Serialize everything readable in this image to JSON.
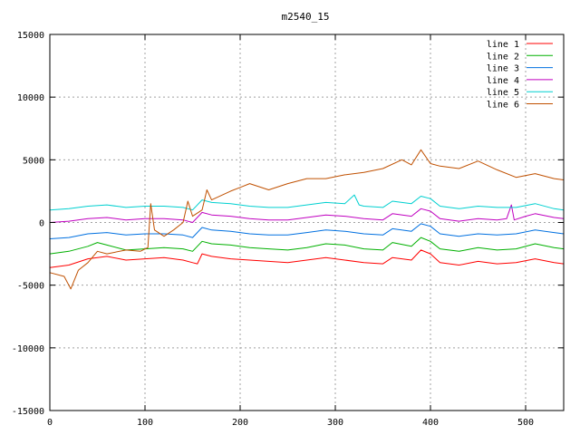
{
  "chart_data": {
    "type": "line",
    "title": "m2540_15",
    "xlabel": "",
    "ylabel": "",
    "xlim": [
      0,
      540
    ],
    "ylim": [
      -15000,
      15000
    ],
    "x_ticks": [
      0,
      100,
      200,
      300,
      400,
      500
    ],
    "y_ticks": [
      -15000,
      -10000,
      -5000,
      0,
      5000,
      10000,
      15000
    ],
    "x_tick_labels": [
      "0",
      "100",
      "200",
      "300",
      "400",
      "500"
    ],
    "y_tick_labels": [
      "-15000",
      "-10000",
      "-5000",
      "0",
      "5000",
      "10000",
      "15000"
    ],
    "grid": true,
    "legend_position": "top-right",
    "series": [
      {
        "name": "line 1",
        "color": "#ff0000",
        "points": [
          [
            0,
            -3600
          ],
          [
            20,
            -3400
          ],
          [
            40,
            -2900
          ],
          [
            60,
            -2700
          ],
          [
            80,
            -3000
          ],
          [
            100,
            -2900
          ],
          [
            120,
            -2800
          ],
          [
            140,
            -3000
          ],
          [
            150,
            -3200
          ],
          [
            155,
            -3300
          ],
          [
            160,
            -2500
          ],
          [
            170,
            -2700
          ],
          [
            190,
            -2900
          ],
          [
            210,
            -3000
          ],
          [
            230,
            -3100
          ],
          [
            250,
            -3200
          ],
          [
            270,
            -3000
          ],
          [
            290,
            -2800
          ],
          [
            310,
            -3000
          ],
          [
            330,
            -3200
          ],
          [
            350,
            -3300
          ],
          [
            360,
            -2800
          ],
          [
            380,
            -3000
          ],
          [
            390,
            -2200
          ],
          [
            400,
            -2500
          ],
          [
            410,
            -3200
          ],
          [
            430,
            -3400
          ],
          [
            450,
            -3100
          ],
          [
            470,
            -3300
          ],
          [
            490,
            -3200
          ],
          [
            510,
            -2900
          ],
          [
            530,
            -3200
          ],
          [
            540,
            -3300
          ]
        ]
      },
      {
        "name": "line 2",
        "color": "#00b000",
        "points": [
          [
            0,
            -2500
          ],
          [
            20,
            -2300
          ],
          [
            40,
            -1900
          ],
          [
            50,
            -1600
          ],
          [
            60,
            -1800
          ],
          [
            80,
            -2200
          ],
          [
            100,
            -2100
          ],
          [
            120,
            -2000
          ],
          [
            140,
            -2100
          ],
          [
            150,
            -2300
          ],
          [
            160,
            -1500
          ],
          [
            170,
            -1700
          ],
          [
            190,
            -1800
          ],
          [
            210,
            -2000
          ],
          [
            230,
            -2100
          ],
          [
            250,
            -2200
          ],
          [
            270,
            -2000
          ],
          [
            290,
            -1700
          ],
          [
            310,
            -1800
          ],
          [
            330,
            -2100
          ],
          [
            350,
            -2200
          ],
          [
            360,
            -1600
          ],
          [
            380,
            -1900
          ],
          [
            390,
            -1200
          ],
          [
            400,
            -1500
          ],
          [
            410,
            -2100
          ],
          [
            430,
            -2300
          ],
          [
            450,
            -2000
          ],
          [
            470,
            -2200
          ],
          [
            490,
            -2100
          ],
          [
            510,
            -1700
          ],
          [
            530,
            -2000
          ],
          [
            540,
            -2100
          ]
        ]
      },
      {
        "name": "line 3",
        "color": "#0070e0",
        "points": [
          [
            0,
            -1300
          ],
          [
            20,
            -1200
          ],
          [
            40,
            -900
          ],
          [
            60,
            -800
          ],
          [
            80,
            -1000
          ],
          [
            100,
            -900
          ],
          [
            120,
            -900
          ],
          [
            140,
            -1000
          ],
          [
            150,
            -1200
          ],
          [
            160,
            -400
          ],
          [
            170,
            -600
          ],
          [
            190,
            -700
          ],
          [
            210,
            -900
          ],
          [
            230,
            -1000
          ],
          [
            250,
            -1000
          ],
          [
            270,
            -800
          ],
          [
            290,
            -600
          ],
          [
            310,
            -700
          ],
          [
            330,
            -900
          ],
          [
            350,
            -1000
          ],
          [
            360,
            -500
          ],
          [
            380,
            -700
          ],
          [
            390,
            -100
          ],
          [
            400,
            -300
          ],
          [
            410,
            -900
          ],
          [
            430,
            -1100
          ],
          [
            450,
            -900
          ],
          [
            470,
            -1000
          ],
          [
            490,
            -900
          ],
          [
            510,
            -600
          ],
          [
            530,
            -800
          ],
          [
            540,
            -900
          ]
        ]
      },
      {
        "name": "line 4",
        "color": "#c000c0",
        "points": [
          [
            0,
            0
          ],
          [
            20,
            100
          ],
          [
            40,
            300
          ],
          [
            60,
            400
          ],
          [
            80,
            200
          ],
          [
            100,
            300
          ],
          [
            120,
            300
          ],
          [
            140,
            200
          ],
          [
            150,
            0
          ],
          [
            160,
            800
          ],
          [
            170,
            600
          ],
          [
            190,
            500
          ],
          [
            210,
            300
          ],
          [
            230,
            200
          ],
          [
            250,
            200
          ],
          [
            270,
            400
          ],
          [
            290,
            600
          ],
          [
            310,
            500
          ],
          [
            330,
            300
          ],
          [
            350,
            200
          ],
          [
            360,
            700
          ],
          [
            380,
            500
          ],
          [
            390,
            1100
          ],
          [
            400,
            900
          ],
          [
            410,
            300
          ],
          [
            430,
            100
          ],
          [
            450,
            300
          ],
          [
            470,
            200
          ],
          [
            480,
            300
          ],
          [
            485,
            1400
          ],
          [
            488,
            200
          ],
          [
            500,
            500
          ],
          [
            510,
            700
          ],
          [
            530,
            400
          ],
          [
            540,
            300
          ]
        ]
      },
      {
        "name": "line 5",
        "color": "#00d0d0",
        "points": [
          [
            0,
            1000
          ],
          [
            20,
            1100
          ],
          [
            40,
            1300
          ],
          [
            60,
            1400
          ],
          [
            80,
            1200
          ],
          [
            100,
            1300
          ],
          [
            120,
            1300
          ],
          [
            140,
            1200
          ],
          [
            150,
            1000
          ],
          [
            160,
            1800
          ],
          [
            170,
            1600
          ],
          [
            190,
            1500
          ],
          [
            210,
            1300
          ],
          [
            230,
            1200
          ],
          [
            250,
            1200
          ],
          [
            270,
            1400
          ],
          [
            290,
            1600
          ],
          [
            310,
            1500
          ],
          [
            320,
            2200
          ],
          [
            325,
            1400
          ],
          [
            330,
            1300
          ],
          [
            350,
            1200
          ],
          [
            360,
            1700
          ],
          [
            380,
            1500
          ],
          [
            390,
            2100
          ],
          [
            400,
            1900
          ],
          [
            410,
            1300
          ],
          [
            430,
            1100
          ],
          [
            450,
            1300
          ],
          [
            470,
            1200
          ],
          [
            490,
            1200
          ],
          [
            510,
            1500
          ],
          [
            530,
            1100
          ],
          [
            540,
            1000
          ]
        ]
      },
      {
        "name": "line 6",
        "color": "#c05000",
        "points": [
          [
            0,
            -4000
          ],
          [
            15,
            -4300
          ],
          [
            22,
            -5300
          ],
          [
            30,
            -3800
          ],
          [
            40,
            -3200
          ],
          [
            50,
            -2300
          ],
          [
            60,
            -2500
          ],
          [
            80,
            -2200
          ],
          [
            95,
            -2300
          ],
          [
            103,
            -2000
          ],
          [
            106,
            1500
          ],
          [
            110,
            -600
          ],
          [
            120,
            -1100
          ],
          [
            130,
            -600
          ],
          [
            140,
            0
          ],
          [
            145,
            1700
          ],
          [
            150,
            500
          ],
          [
            160,
            1000
          ],
          [
            165,
            2600
          ],
          [
            170,
            1800
          ],
          [
            190,
            2500
          ],
          [
            200,
            2800
          ],
          [
            210,
            3100
          ],
          [
            230,
            2600
          ],
          [
            250,
            3100
          ],
          [
            270,
            3500
          ],
          [
            290,
            3500
          ],
          [
            310,
            3800
          ],
          [
            330,
            4000
          ],
          [
            350,
            4300
          ],
          [
            370,
            5000
          ],
          [
            380,
            4600
          ],
          [
            390,
            5800
          ],
          [
            400,
            4700
          ],
          [
            410,
            4500
          ],
          [
            430,
            4300
          ],
          [
            450,
            4900
          ],
          [
            470,
            4200
          ],
          [
            490,
            3600
          ],
          [
            510,
            3900
          ],
          [
            530,
            3500
          ],
          [
            540,
            3400
          ]
        ]
      }
    ]
  }
}
